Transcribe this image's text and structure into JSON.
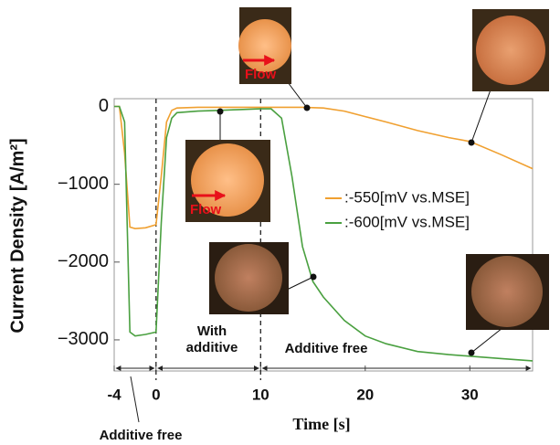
{
  "chart_data": {
    "type": "line",
    "y_label": "Current Density [A/m²]",
    "x_label": "Time [s]",
    "x": [
      -4,
      -3.5,
      -3,
      -2.5,
      -2,
      -1,
      0,
      0.5,
      1,
      1.5,
      2,
      4,
      6,
      8,
      10,
      11,
      12,
      13,
      14,
      15,
      16,
      18,
      20,
      22,
      25,
      28,
      30,
      33,
      36
    ],
    "series": [
      {
        "name": ":-550[mV vs.MSE]",
        "color": "#f0a030",
        "values": [
          0,
          0,
          -600,
          -1550,
          -1570,
          -1560,
          -1520,
          -900,
          -200,
          -50,
          -20,
          -10,
          -10,
          -10,
          -10,
          -10,
          -10,
          -10,
          -10,
          -15,
          -20,
          -60,
          -130,
          -200,
          -310,
          -400,
          -450,
          -620,
          -800
        ]
      },
      {
        "name": ":-600[mV vs.MSE]",
        "color": "#4aa040",
        "values": [
          0,
          0,
          -200,
          -2900,
          -2950,
          -2930,
          -2900,
          -1500,
          -400,
          -150,
          -80,
          -60,
          -50,
          -40,
          -30,
          -30,
          -150,
          -900,
          -1800,
          -2250,
          -2450,
          -2750,
          -2950,
          -3050,
          -3150,
          -3190,
          -3210,
          -3240,
          -3270
        ]
      }
    ],
    "xlim": [
      -4,
      36
    ],
    "ylim": [
      -3400,
      100
    ],
    "xticks": [
      -4,
      0,
      10,
      20,
      30
    ],
    "yticks": [
      0,
      {
        "value": -1000,
        "label": "−1000"
      },
      {
        "value": -2000,
        "label": "−2000"
      },
      {
        "value": -3000,
        "label": "−3000"
      }
    ],
    "phase_bounds": [
      0,
      10
    ],
    "annotations": {
      "additive_free_start": "Additive free",
      "with_additive": "With additive",
      "additive_free_end": "Additive free",
      "flow": "Flow"
    }
  }
}
